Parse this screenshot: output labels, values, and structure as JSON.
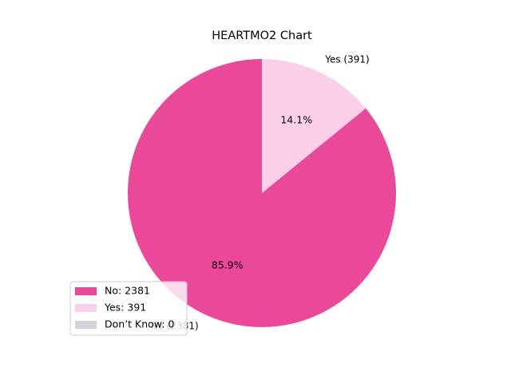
{
  "chart_data": {
    "type": "pie",
    "title": "HEARTMO2 Chart",
    "slices": [
      {
        "label": "No",
        "value": 2381,
        "percent_label": "85.9%",
        "outer_label": "No (2381)",
        "legend": "No: 2381",
        "color": "#ec4899"
      },
      {
        "label": "Yes",
        "value": 391,
        "percent_label": "14.1%",
        "outer_label": "Yes (391)",
        "legend": "Yes: 391",
        "color": "#fbcfe8"
      },
      {
        "label": "Don’t Know",
        "value": 0,
        "percent_label": "",
        "outer_label": "",
        "legend": "Don’t Know: 0",
        "color": "#d1d5db"
      }
    ],
    "start_angle_deg": 90,
    "direction": "counterclockwise",
    "legend_position": "lower-left"
  }
}
